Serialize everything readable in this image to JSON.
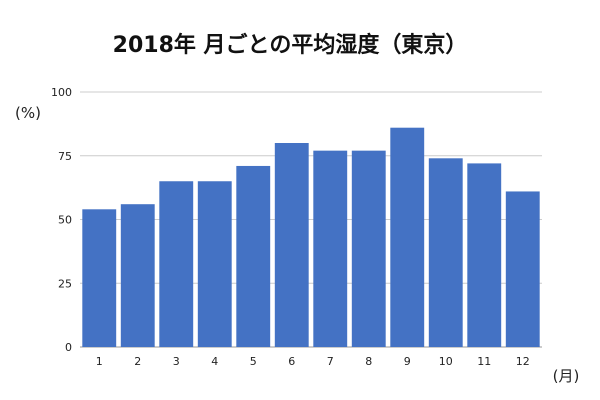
{
  "chart_data": {
    "type": "bar",
    "title": "2018年 月ごとの平均湿度（東京）",
    "ylabel": "(%)",
    "xlabel": "(月)",
    "categories": [
      "1",
      "2",
      "3",
      "4",
      "5",
      "6",
      "7",
      "8",
      "9",
      "10",
      "11",
      "12"
    ],
    "values": [
      54,
      56,
      65,
      65,
      71,
      80,
      77,
      77,
      86,
      74,
      72,
      61
    ],
    "ylim": [
      0,
      100
    ],
    "yticks": [
      "0",
      "25",
      "50",
      "75",
      "100"
    ],
    "grid": true,
    "legend": "none",
    "bar_color": "#4472c4"
  }
}
